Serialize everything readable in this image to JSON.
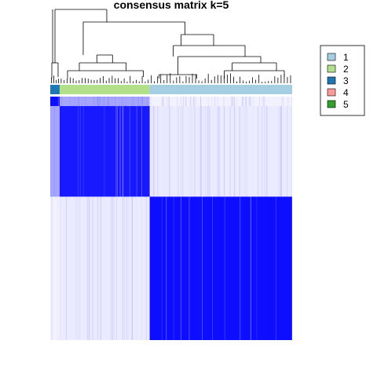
{
  "chart_data": {
    "type": "heatmap",
    "title": "consensus matrix k=5",
    "colors": {
      "high": "#0000FF",
      "low": "#FFFFFF",
      "dendrogram": "#000000"
    },
    "order": [
      3,
      2,
      1
    ],
    "class_sizes": [
      {
        "class": "1",
        "count": 182
      },
      {
        "class": "2",
        "count": 115
      },
      {
        "class": "3",
        "count": 12
      }
    ],
    "blocks": [
      {
        "rows": "3",
        "cols": "3",
        "value": 0.95
      },
      {
        "rows": "2",
        "cols": "2",
        "value": 0.9
      },
      {
        "rows": "1",
        "cols": "1",
        "value": 0.95
      },
      {
        "rows": "1",
        "cols": "2",
        "value": 0.08
      },
      {
        "rows": "2",
        "cols": "1",
        "value": 0.08
      },
      {
        "rows": "3",
        "cols": "2",
        "value": 0.35
      },
      {
        "rows": "2",
        "cols": "3",
        "value": 0.35
      },
      {
        "rows": "3",
        "cols": "1",
        "value": 0.05
      },
      {
        "rows": "1",
        "cols": "3",
        "value": 0.05
      }
    ],
    "legend": {
      "position": "right",
      "entries": [
        {
          "label": "1",
          "color": "#A6CEE3"
        },
        {
          "label": "2",
          "color": "#B2DF8A"
        },
        {
          "label": "3",
          "color": "#1F78B4"
        },
        {
          "label": "4",
          "color": "#FB9A99"
        },
        {
          "label": "5",
          "color": "#33A02C"
        }
      ]
    }
  }
}
